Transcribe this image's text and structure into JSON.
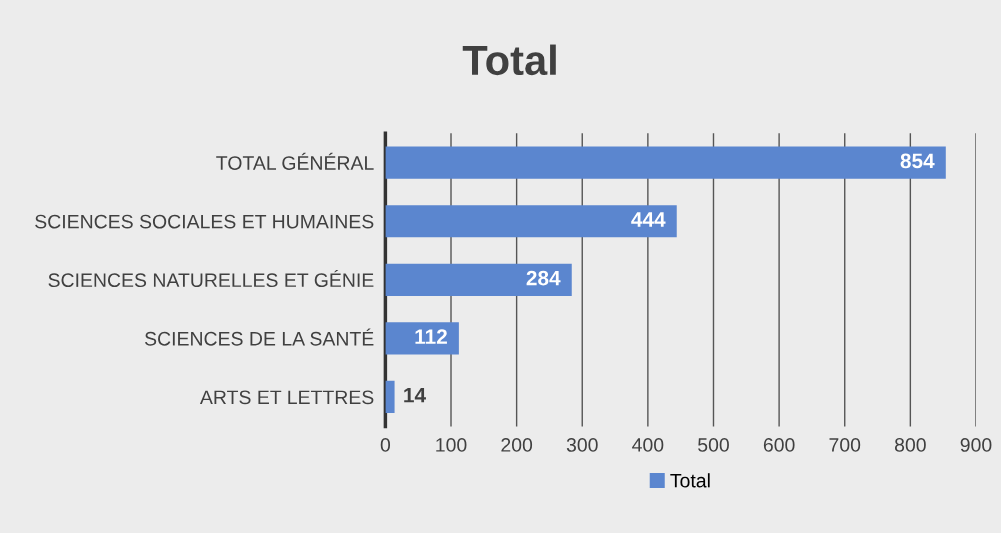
{
  "chart_data": {
    "type": "bar",
    "orientation": "horizontal",
    "title": "Total",
    "categories": [
      "TOTAL GÉNÉRAL",
      "SCIENCES SOCIALES ET HUMAINES",
      "SCIENCES NATURELLES ET GÉNIE",
      "SCIENCES DE LA SANTÉ",
      "ARTS ET LETTRES"
    ],
    "series": [
      {
        "name": "Total",
        "color": "#5b86cf",
        "values": [
          854,
          444,
          284,
          112,
          14
        ]
      }
    ],
    "xlim": [
      0,
      900
    ],
    "xticks": [
      0,
      100,
      200,
      300,
      400,
      500,
      600,
      700,
      800,
      900
    ],
    "grid": "x",
    "legend": "bottom",
    "data_labels": true
  }
}
